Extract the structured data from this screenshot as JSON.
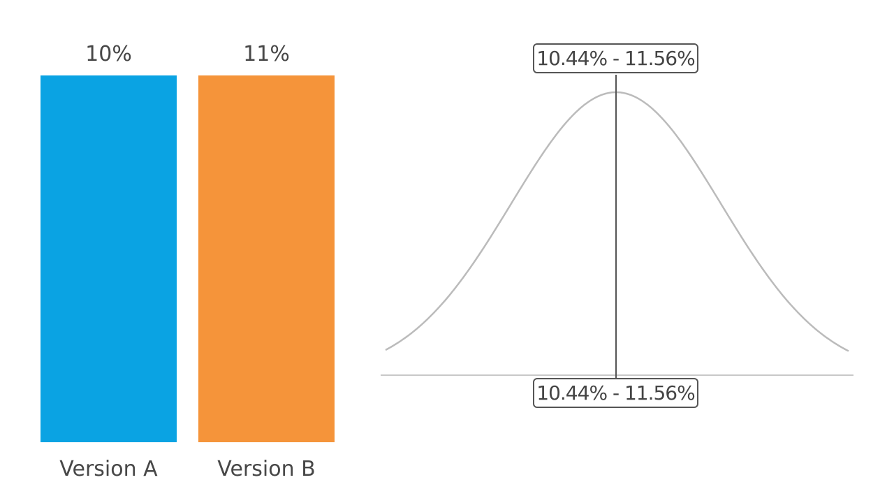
{
  "chart_data": [
    {
      "type": "bar",
      "categories": [
        "Version A",
        "Version B"
      ],
      "values": [
        10,
        11
      ],
      "data_labels": [
        "10%",
        "11%"
      ],
      "colors": [
        "#0aa3e3",
        "#f5943a"
      ],
      "ylim": [
        0,
        11
      ],
      "grid": false
    },
    {
      "type": "line",
      "description_kind": "bell-curve",
      "interval": [
        10.44,
        11.56
      ],
      "interval_labels": [
        "10.44% - 11.56%",
        "10.44% - 11.56%"
      ],
      "line_color": "#bbbbbb",
      "marker_color": "#555555",
      "grid": false
    }
  ]
}
